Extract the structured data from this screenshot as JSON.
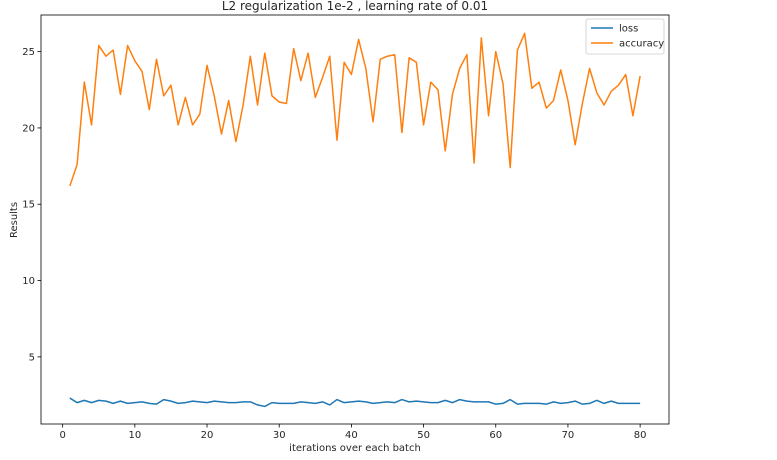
{
  "chart_data": {
    "type": "line",
    "title": "L2 regularization 1e-2 , learning rate of 0.01",
    "xlabel": "iterations over each batch",
    "ylabel": "Results",
    "xlim": [
      -3.0,
      84.0
    ],
    "ylim": [
      0.6,
      27.4
    ],
    "xticks": [
      0,
      10,
      20,
      30,
      40,
      50,
      60,
      70,
      80
    ],
    "yticks": [
      5,
      10,
      15,
      20,
      25
    ],
    "grid": false,
    "legend": "top-right",
    "x": [
      1,
      2,
      3,
      4,
      5,
      6,
      7,
      8,
      9,
      10,
      11,
      12,
      13,
      14,
      15,
      16,
      17,
      18,
      19,
      20,
      21,
      22,
      23,
      24,
      25,
      26,
      27,
      28,
      29,
      30,
      31,
      32,
      33,
      34,
      35,
      36,
      37,
      38,
      39,
      40,
      41,
      42,
      43,
      44,
      45,
      46,
      47,
      48,
      49,
      50,
      51,
      52,
      53,
      54,
      55,
      56,
      57,
      58,
      59,
      60,
      61,
      62,
      63,
      64,
      65,
      66,
      67,
      68,
      69,
      70,
      71,
      72,
      73,
      74,
      75,
      76,
      77,
      78,
      79,
      80
    ],
    "series": [
      {
        "name": "loss",
        "color": "#1f77b4",
        "values": [
          2.3,
          2.0,
          2.15,
          2.0,
          2.15,
          2.1,
          1.95,
          2.1,
          1.95,
          2.0,
          2.05,
          1.95,
          1.9,
          2.2,
          2.1,
          1.95,
          2.0,
          2.1,
          2.05,
          2.0,
          2.1,
          2.05,
          2.0,
          2.0,
          2.05,
          2.05,
          1.85,
          1.75,
          2.0,
          1.95,
          1.95,
          1.95,
          2.05,
          2.0,
          1.95,
          2.05,
          1.85,
          2.2,
          2.0,
          2.05,
          2.1,
          2.05,
          1.95,
          2.0,
          2.05,
          2.0,
          2.2,
          2.05,
          2.1,
          2.05,
          2.0,
          2.0,
          2.15,
          2.0,
          2.2,
          2.1,
          2.05,
          2.05,
          2.05,
          1.9,
          1.95,
          2.2,
          1.9,
          1.95,
          1.95,
          1.95,
          1.9,
          2.05,
          1.95,
          2.0,
          2.1,
          1.9,
          1.95,
          2.15,
          1.95,
          2.1,
          1.95,
          1.95,
          1.95,
          1.95
        ]
      },
      {
        "name": "accuracy",
        "color": "#ff7f0e",
        "values": [
          16.2,
          17.6,
          23.0,
          20.2,
          25.4,
          24.7,
          25.1,
          22.2,
          25.4,
          24.4,
          23.7,
          21.2,
          24.5,
          22.1,
          22.8,
          20.2,
          22.0,
          20.2,
          20.9,
          24.1,
          22.1,
          19.6,
          21.8,
          19.1,
          21.5,
          24.7,
          21.5,
          24.9,
          22.1,
          21.7,
          21.6,
          25.2,
          23.1,
          24.9,
          22.0,
          23.3,
          24.7,
          19.2,
          24.3,
          23.5,
          25.8,
          23.9,
          20.4,
          24.5,
          24.7,
          24.8,
          19.7,
          24.6,
          24.3,
          20.2,
          23.0,
          22.5,
          18.5,
          22.2,
          23.9,
          24.8,
          17.7,
          25.9,
          20.8,
          25.0,
          22.9,
          17.4,
          25.1,
          26.2,
          22.6,
          23.0,
          21.3,
          21.8,
          23.8,
          21.8,
          18.9,
          21.6,
          23.9,
          22.3,
          21.5,
          22.4,
          22.8,
          23.5,
          20.8,
          23.4
        ]
      }
    ]
  }
}
